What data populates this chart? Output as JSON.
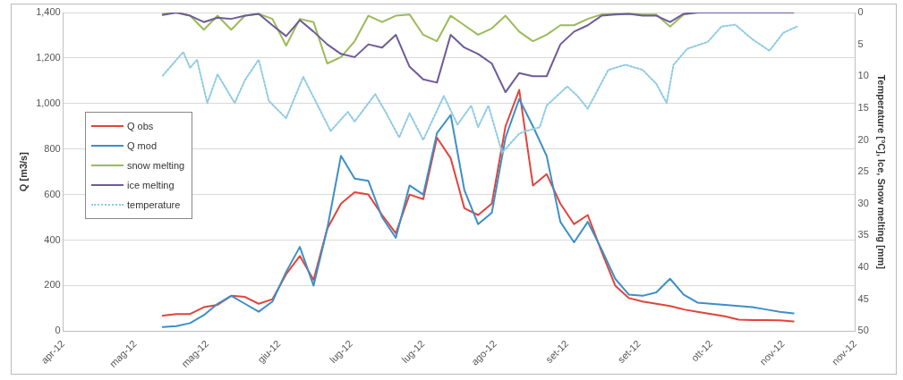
{
  "chart_data": {
    "type": "line",
    "ylabel": "Q [m3/s]",
    "y2label": "Temperature [°C], Ice, Snow melting [mm]",
    "x": [
      "2012-05-11",
      "2012-05-15",
      "2012-05-19",
      "2012-05-23",
      "2012-05-27",
      "2012-05-31",
      "2012-06-04",
      "2012-06-08",
      "2012-06-12",
      "2012-06-16",
      "2012-06-20",
      "2012-06-24",
      "2012-06-28",
      "2012-07-02",
      "2012-07-06",
      "2012-07-10",
      "2012-07-14",
      "2012-07-18",
      "2012-07-22",
      "2012-07-26",
      "2012-07-30",
      "2012-08-03",
      "2012-08-07",
      "2012-08-11",
      "2012-08-15",
      "2012-08-19",
      "2012-08-23",
      "2012-08-27",
      "2012-08-31",
      "2012-09-04",
      "2012-09-08",
      "2012-09-12",
      "2012-09-16",
      "2012-09-20",
      "2012-09-24",
      "2012-09-28",
      "2012-10-02",
      "2012-10-06",
      "2012-10-10",
      "2012-10-14",
      "2012-10-18",
      "2012-10-22",
      "2012-10-26",
      "2012-10-30",
      "2012-11-03",
      "2012-11-07",
      "2012-11-11"
    ],
    "series": [
      {
        "name": "Q obs",
        "color": "#e0443c",
        "values": [
          68,
          75,
          75,
          105,
          115,
          155,
          150,
          120,
          140,
          250,
          330,
          225,
          450,
          560,
          610,
          600,
          510,
          430,
          600,
          580,
          850,
          760,
          540,
          510,
          560,
          900,
          1060,
          640,
          690,
          560,
          470,
          510,
          350,
          200,
          145,
          130,
          120,
          110,
          95,
          85,
          75,
          65,
          50,
          48,
          48,
          47,
          42
        ]
      },
      {
        "name": "Q mod",
        "color": "#3d8fc6",
        "values": [
          18,
          22,
          35,
          70,
          120,
          155,
          120,
          85,
          130,
          260,
          370,
          200,
          450,
          770,
          670,
          660,
          500,
          410,
          640,
          600,
          870,
          950,
          620,
          470,
          520,
          850,
          1020,
          900,
          770,
          480,
          390,
          480,
          360,
          230,
          160,
          155,
          170,
          230,
          160,
          125,
          120,
          115,
          110,
          105,
          95,
          85,
          78
        ]
      },
      {
        "name": "snow melting",
        "color": "#9bbb59",
        "axis": "y2",
        "values": [
          0.2,
          0,
          0.5,
          2.7,
          0.5,
          2.7,
          0.5,
          0.2,
          1,
          5.2,
          1,
          1.5,
          8,
          7,
          4.5,
          0.5,
          1.5,
          0.5,
          0.3,
          3.5,
          4.5,
          0.5,
          2,
          3.5,
          2.5,
          0.5,
          3,
          4.5,
          3.5,
          2,
          2,
          1,
          0.3,
          0.2,
          0.2,
          0.3,
          0.3,
          2.2,
          0.3,
          0,
          0,
          null,
          null,
          null,
          null,
          null,
          null
        ]
      },
      {
        "name": "ice melting",
        "color": "#6f5a9a",
        "axis": "y2",
        "values": [
          0.4,
          0,
          0.5,
          1.5,
          0.8,
          1,
          0.5,
          0.2,
          2,
          3.7,
          1.2,
          3,
          5,
          6.5,
          7,
          5,
          5.5,
          3.5,
          8.5,
          10.5,
          11,
          3.5,
          5.5,
          6.5,
          8,
          12.5,
          9.5,
          10,
          10,
          5,
          3,
          2,
          0.5,
          0.3,
          0.2,
          0.5,
          0.5,
          1.5,
          0.2,
          0,
          0,
          0,
          0,
          0,
          0,
          0,
          0
        ]
      },
      {
        "name": "temperature",
        "color": "#8fcbe3",
        "axis": "y2",
        "line_style": "dotted",
        "x": [
          "2012-05-11",
          "2012-05-17",
          "2012-05-19",
          "2012-05-21",
          "2012-05-24",
          "2012-05-27",
          "2012-06-01",
          "2012-06-04",
          "2012-06-08",
          "2012-06-11",
          "2012-06-16",
          "2012-06-21",
          "2012-06-29",
          "2012-07-04",
          "2012-07-06",
          "2012-07-12",
          "2012-07-15",
          "2012-07-19",
          "2012-07-22",
          "2012-07-26",
          "2012-08-01",
          "2012-08-05",
          "2012-08-09",
          "2012-08-11",
          "2012-08-14",
          "2012-08-18",
          "2012-08-23",
          "2012-08-25",
          "2012-08-29",
          "2012-08-31",
          "2012-09-06",
          "2012-09-09",
          "2012-09-12",
          "2012-09-18",
          "2012-09-23",
          "2012-09-28",
          "2012-10-02",
          "2012-10-05",
          "2012-10-07",
          "2012-10-11",
          "2012-10-17",
          "2012-10-21",
          "2012-10-25",
          "2012-10-30",
          "2012-11-04",
          "2012-11-08",
          "2012-11-12"
        ],
        "values": [
          9.9,
          6.2,
          8.7,
          7.4,
          14.2,
          9.7,
          14.2,
          10.6,
          7.4,
          13.9,
          16.6,
          10.1,
          18.6,
          15.6,
          17.1,
          12.8,
          15.6,
          19.6,
          15.8,
          20,
          13.1,
          17.6,
          14.6,
          18,
          14.6,
          22,
          19,
          18.6,
          18,
          14.6,
          11.6,
          13.1,
          15.1,
          9,
          8.2,
          9,
          11.2,
          14.2,
          8.2,
          5.7,
          4.6,
          2.2,
          1.9,
          4.2,
          6,
          3.2,
          2.2
        ]
      }
    ],
    "xlim": [
      "2012-04-12",
      "2012-11-29"
    ],
    "xticks": [
      {
        "value": "2012-04-12",
        "label": "apr-12"
      },
      {
        "value": "2012-05-03",
        "label": "mag-12"
      },
      {
        "value": "2012-05-24",
        "label": "mag-12"
      },
      {
        "value": "2012-06-14",
        "label": "giu-12"
      },
      {
        "value": "2012-07-05",
        "label": "lug-12"
      },
      {
        "value": "2012-07-26",
        "label": "lug-12"
      },
      {
        "value": "2012-08-16",
        "label": "ago-12"
      },
      {
        "value": "2012-09-06",
        "label": "set-12"
      },
      {
        "value": "2012-09-27",
        "label": "set-12"
      },
      {
        "value": "2012-10-18",
        "label": "ott-12"
      },
      {
        "value": "2012-11-08",
        "label": "nov-12"
      },
      {
        "value": "2012-11-29",
        "label": "nov-12"
      }
    ],
    "ylim": [
      0,
      1400
    ],
    "yticks": [
      {
        "value": 0,
        "label": "0"
      },
      {
        "value": 200,
        "label": "200"
      },
      {
        "value": 400,
        "label": "400"
      },
      {
        "value": 600,
        "label": "600"
      },
      {
        "value": 800,
        "label": "800"
      },
      {
        "value": 1000,
        "label": "1,000"
      },
      {
        "value": 1200,
        "label": "1,200"
      },
      {
        "value": 1400,
        "label": "1,400"
      }
    ],
    "y2lim": [
      50,
      0
    ],
    "y2ticks": [
      0,
      5,
      10,
      15,
      20,
      25,
      30,
      35,
      40,
      45,
      50
    ],
    "grid": "y",
    "legend": "left",
    "marker": "none",
    "line_style": "solid"
  }
}
